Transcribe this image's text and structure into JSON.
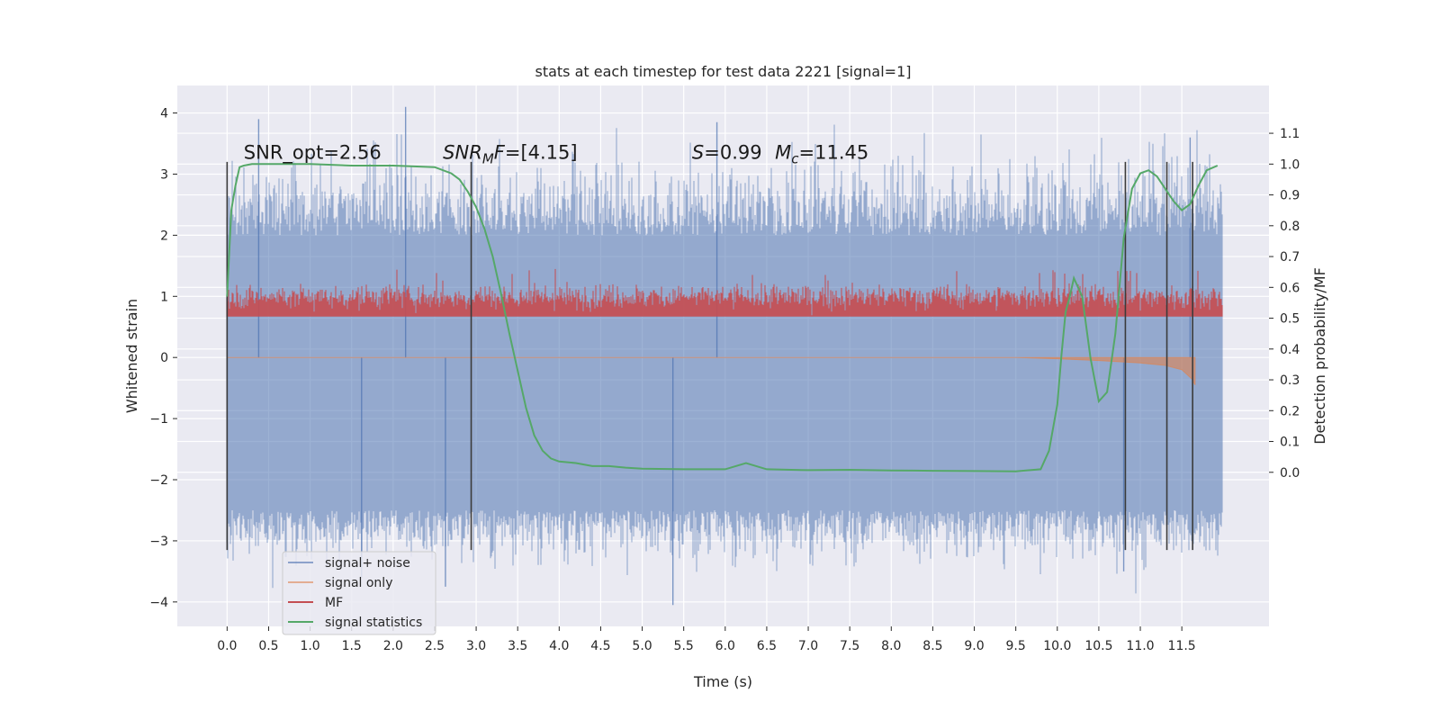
{
  "chart_data": {
    "type": "line",
    "title": "stats at each timestep for test data 2221 [signal=1]",
    "xlabel": "Time (s)",
    "ylabel": "Whitened strain",
    "ylabel_right": "Detection probability/MF",
    "xlim": [
      -0.6,
      12.55
    ],
    "ylim": [
      -4.4,
      4.45
    ],
    "ylim_right": [
      -0.5,
      1.255
    ],
    "x_ticks": [
      "0.0",
      "0.5",
      "1.0",
      "1.5",
      "2.0",
      "2.5",
      "3.0",
      "3.5",
      "4.0",
      "4.5",
      "5.0",
      "5.5",
      "6.0",
      "6.5",
      "7.0",
      "7.5",
      "8.0",
      "8.5",
      "9.0",
      "9.5",
      "10.0",
      "10.5",
      "11.0",
      "11.5"
    ],
    "y_ticks": [
      "−4",
      "−3",
      "−2",
      "−1",
      "0",
      "1",
      "2",
      "3",
      "4"
    ],
    "y_ticks_right": [
      "0.0",
      "0.1",
      "0.2",
      "0.3",
      "0.4",
      "0.5",
      "0.6",
      "0.7",
      "0.8",
      "0.9",
      "1.0",
      "1.1"
    ],
    "grid": true,
    "legend_position": "lower-left",
    "annotations": [
      {
        "text": "SNR_opt=2.56",
        "x": 0.2,
        "y": 3.25
      },
      {
        "text": "SNR_MF=[4.15]",
        "x": 2.6,
        "y": 3.25,
        "prefix": "SNR",
        "sub": "M",
        "suffix": "F=[4.15]"
      },
      {
        "text": "S=0.99",
        "x": 5.6,
        "y": 3.25,
        "prefix": "S",
        "suffix": "=0.99"
      },
      {
        "text": "M_c=11.45",
        "x": 6.6,
        "y": 3.25,
        "prefix": "M",
        "sub": "c",
        "suffix": "=11.45"
      }
    ],
    "vertical_lines": [
      {
        "x": 0.0,
        "ymin": -3.15,
        "ymax": 3.2
      },
      {
        "x": 2.94,
        "ymin": -3.15,
        "ymax": 3.2
      },
      {
        "x": 10.82,
        "ymin": -3.15,
        "ymax": 3.2
      },
      {
        "x": 11.32,
        "ymin": -3.15,
        "ymax": 3.2
      },
      {
        "x": 11.63,
        "ymin": -3.15,
        "ymax": 3.2
      }
    ],
    "series": [
      {
        "name": "signal+ noise",
        "color": "#4c72b0",
        "axis": "left",
        "x_range": [
          0.0,
          11.99
        ],
        "envelope_upper_typical": 2.0,
        "envelope_lower_typical": -2.5,
        "peak_values": [
          {
            "x": 0.38,
            "y": 3.9
          },
          {
            "x": 2.15,
            "y": 4.1
          },
          {
            "x": 5.9,
            "y": 3.85
          },
          {
            "x": 11.6,
            "y": 3.6
          },
          {
            "x": 5.37,
            "y": -4.05
          },
          {
            "x": 2.63,
            "y": -3.75
          },
          {
            "x": 10.8,
            "y": -3.5
          },
          {
            "x": 1.62,
            "y": -3.6
          }
        ]
      },
      {
        "name": "signal only",
        "color": "#dd8452",
        "axis": "left",
        "x": [
          0.0,
          9.5,
          10.0,
          10.5,
          11.0,
          11.3,
          11.5,
          11.62,
          11.66
        ],
        "y": [
          0.0,
          0.0,
          -0.02,
          -0.05,
          -0.09,
          -0.13,
          -0.2,
          -0.35,
          -0.45
        ]
      },
      {
        "name": "MF",
        "color": "#c44e52",
        "axis": "right",
        "baseline": 0.505,
        "typical_top": 0.6,
        "max": 0.66
      },
      {
        "name": "signal statistics",
        "color": "#55a868",
        "axis": "right",
        "x": [
          0.0,
          0.05,
          0.1,
          0.15,
          0.2,
          0.3,
          0.5,
          1.0,
          1.5,
          2.0,
          2.5,
          2.7,
          2.8,
          2.9,
          3.0,
          3.1,
          3.2,
          3.3,
          3.4,
          3.5,
          3.6,
          3.7,
          3.8,
          3.9,
          4.0,
          4.2,
          4.4,
          4.6,
          4.8,
          5.0,
          5.5,
          6.0,
          6.25,
          6.5,
          7.0,
          7.5,
          8.0,
          8.5,
          9.0,
          9.5,
          9.8,
          9.9,
          10.0,
          10.05,
          10.1,
          10.15,
          10.2,
          10.3,
          10.4,
          10.5,
          10.6,
          10.7,
          10.8,
          10.9,
          11.0,
          11.1,
          11.2,
          11.3,
          11.4,
          11.5,
          11.6,
          11.7,
          11.8,
          11.93
        ],
        "y": [
          0.57,
          0.85,
          0.93,
          0.99,
          0.995,
          1.0,
          1.0,
          1.0,
          0.995,
          0.995,
          0.99,
          0.97,
          0.95,
          0.91,
          0.86,
          0.79,
          0.7,
          0.58,
          0.45,
          0.33,
          0.21,
          0.12,
          0.07,
          0.045,
          0.035,
          0.03,
          0.02,
          0.02,
          0.015,
          0.012,
          0.01,
          0.01,
          0.03,
          0.01,
          0.007,
          0.008,
          0.006,
          0.005,
          0.004,
          0.003,
          0.01,
          0.07,
          0.22,
          0.38,
          0.52,
          0.57,
          0.63,
          0.57,
          0.37,
          0.23,
          0.26,
          0.45,
          0.76,
          0.92,
          0.97,
          0.98,
          0.96,
          0.92,
          0.88,
          0.85,
          0.87,
          0.93,
          0.98,
          0.995
        ]
      }
    ]
  }
}
